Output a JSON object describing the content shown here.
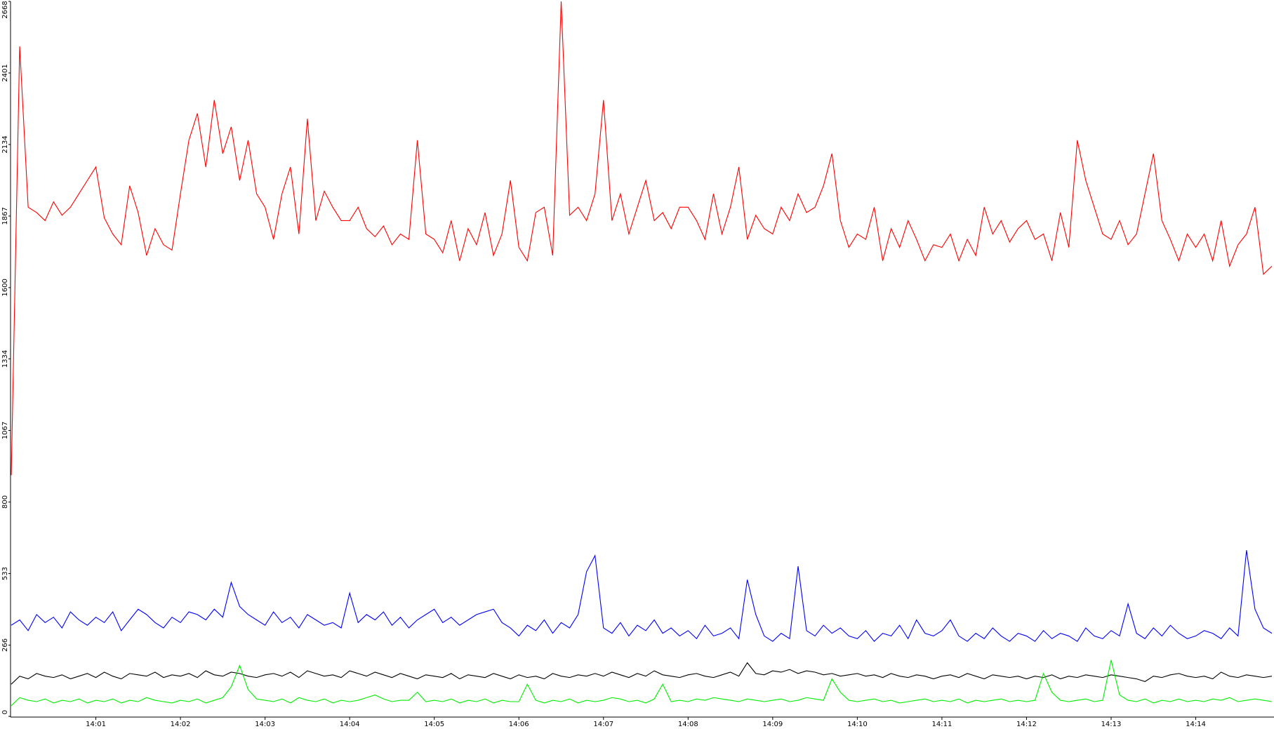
{
  "chart_data": {
    "type": "line",
    "ylim": [
      0,
      2668
    ],
    "yticks": [
      0,
      266,
      533,
      800,
      1067,
      1334,
      1600,
      1867,
      2134,
      2401,
      2668
    ],
    "categories": [
      null,
      null,
      null,
      null,
      null,
      null,
      null,
      null,
      null,
      null,
      "14:01",
      null,
      null,
      null,
      null,
      null,
      null,
      null,
      null,
      null,
      "14:02",
      null,
      null,
      null,
      null,
      null,
      null,
      null,
      null,
      null,
      "14:03",
      null,
      null,
      null,
      null,
      null,
      null,
      null,
      null,
      null,
      "14:04",
      null,
      null,
      null,
      null,
      null,
      null,
      null,
      null,
      null,
      "14:05",
      null,
      null,
      null,
      null,
      null,
      null,
      null,
      null,
      null,
      "14:06",
      null,
      null,
      null,
      null,
      null,
      null,
      null,
      null,
      null,
      "14:07",
      null,
      null,
      null,
      null,
      null,
      null,
      null,
      null,
      null,
      "14:08",
      null,
      null,
      null,
      null,
      null,
      null,
      null,
      null,
      null,
      "14:09",
      null,
      null,
      null,
      null,
      null,
      null,
      null,
      null,
      null,
      "14:10",
      null,
      null,
      null,
      null,
      null,
      null,
      null,
      null,
      null,
      "14:11",
      null,
      null,
      null,
      null,
      null,
      null,
      null,
      null,
      null,
      "14:12",
      null,
      null,
      null,
      null,
      null,
      null,
      null,
      null,
      null,
      "14:13",
      null,
      null,
      null,
      null,
      null,
      null,
      null,
      null,
      null,
      "14:14",
      null,
      null,
      null,
      null,
      null,
      null,
      null,
      null,
      null
    ],
    "series": [
      {
        "color": "#ff0000",
        "values": [
          900,
          2500,
          1900,
          1880,
          1850,
          1920,
          1870,
          1900,
          1950,
          2000,
          2050,
          1860,
          1800,
          1760,
          1980,
          1880,
          1720,
          1820,
          1760,
          1740,
          1950,
          2150,
          2250,
          2050,
          2300,
          2100,
          2200,
          2000,
          2150,
          1950,
          1900,
          1780,
          1950,
          2050,
          1800,
          2230,
          1850,
          1960,
          1900,
          1850,
          1850,
          1900,
          1820,
          1790,
          1830,
          1760,
          1800,
          1780,
          2150,
          1800,
          1780,
          1730,
          1850,
          1700,
          1820,
          1760,
          1880,
          1720,
          1800,
          2000,
          1750,
          1700,
          1880,
          1900,
          1720,
          2668,
          1870,
          1900,
          1850,
          1950,
          2300,
          1850,
          1950,
          1800,
          1900,
          2000,
          1850,
          1880,
          1820,
          1900,
          1900,
          1850,
          1780,
          1950,
          1800,
          1900,
          2050,
          1780,
          1870,
          1820,
          1800,
          1900,
          1850,
          1950,
          1880,
          1900,
          1980,
          2100,
          1850,
          1750,
          1800,
          1780,
          1900,
          1700,
          1820,
          1750,
          1850,
          1780,
          1700,
          1760,
          1750,
          1800,
          1700,
          1780,
          1720,
          1900,
          1800,
          1850,
          1770,
          1820,
          1850,
          1780,
          1800,
          1700,
          1880,
          1750,
          2150,
          2000,
          1900,
          1800,
          1780,
          1850,
          1760,
          1800,
          1950,
          2100,
          1850,
          1780,
          1700,
          1800,
          1750,
          1800,
          1700,
          1850,
          1680,
          1760,
          1800,
          1900,
          1650,
          1680
        ]
      },
      {
        "color": "#0000ff",
        "values": [
          340,
          360,
          320,
          380,
          350,
          370,
          330,
          390,
          360,
          340,
          370,
          350,
          390,
          320,
          360,
          400,
          380,
          350,
          330,
          370,
          350,
          390,
          380,
          360,
          400,
          370,
          500,
          410,
          380,
          360,
          340,
          390,
          350,
          370,
          330,
          380,
          360,
          340,
          350,
          330,
          460,
          350,
          380,
          360,
          390,
          340,
          370,
          330,
          360,
          380,
          400,
          350,
          370,
          340,
          360,
          380,
          390,
          400,
          350,
          330,
          300,
          340,
          320,
          360,
          310,
          350,
          330,
          380,
          540,
          600,
          330,
          310,
          350,
          300,
          340,
          320,
          360,
          310,
          330,
          300,
          320,
          290,
          340,
          300,
          310,
          330,
          290,
          510,
          380,
          300,
          280,
          310,
          290,
          560,
          320,
          300,
          340,
          310,
          330,
          300,
          290,
          320,
          280,
          310,
          300,
          340,
          290,
          360,
          310,
          300,
          320,
          360,
          300,
          280,
          310,
          290,
          330,
          300,
          280,
          310,
          300,
          280,
          320,
          290,
          310,
          300,
          280,
          330,
          300,
          290,
          320,
          300,
          420,
          310,
          290,
          330,
          300,
          340,
          310,
          290,
          300,
          320,
          310,
          290,
          330,
          300,
          620,
          400,
          330,
          310
        ]
      },
      {
        "color": "#000000",
        "values": [
          120,
          150,
          140,
          160,
          150,
          145,
          155,
          140,
          150,
          160,
          145,
          165,
          150,
          140,
          160,
          155,
          150,
          165,
          145,
          155,
          150,
          160,
          145,
          170,
          155,
          150,
          165,
          160,
          150,
          145,
          155,
          160,
          150,
          165,
          145,
          170,
          160,
          150,
          155,
          145,
          170,
          160,
          150,
          165,
          155,
          145,
          160,
          150,
          140,
          155,
          150,
          145,
          160,
          140,
          155,
          150,
          145,
          160,
          150,
          140,
          155,
          145,
          150,
          140,
          160,
          150,
          145,
          155,
          150,
          160,
          150,
          165,
          155,
          145,
          160,
          150,
          170,
          155,
          150,
          145,
          155,
          160,
          150,
          145,
          155,
          165,
          150,
          200,
          160,
          155,
          170,
          165,
          175,
          160,
          170,
          165,
          155,
          160,
          150,
          155,
          160,
          150,
          155,
          145,
          160,
          150,
          145,
          155,
          150,
          140,
          150,
          155,
          145,
          160,
          150,
          140,
          155,
          150,
          145,
          150,
          140,
          150,
          145,
          155,
          140,
          150,
          145,
          155,
          150,
          145,
          155,
          150,
          145,
          140,
          130,
          150,
          145,
          155,
          160,
          150,
          145,
          150,
          140,
          165,
          150,
          145,
          155,
          150,
          145,
          150
        ]
      },
      {
        "color": "#00ee00",
        "values": [
          40,
          70,
          60,
          55,
          65,
          50,
          60,
          55,
          65,
          50,
          60,
          55,
          65,
          50,
          60,
          55,
          70,
          60,
          55,
          50,
          60,
          55,
          65,
          50,
          60,
          70,
          110,
          190,
          100,
          65,
          60,
          55,
          65,
          50,
          70,
          60,
          55,
          65,
          50,
          60,
          55,
          60,
          70,
          80,
          65,
          55,
          60,
          60,
          90,
          55,
          60,
          55,
          65,
          50,
          60,
          55,
          65,
          50,
          60,
          55,
          55,
          120,
          60,
          50,
          60,
          55,
          65,
          50,
          60,
          55,
          60,
          70,
          65,
          55,
          60,
          50,
          65,
          120,
          55,
          60,
          55,
          65,
          60,
          70,
          65,
          60,
          55,
          65,
          60,
          55,
          60,
          65,
          55,
          60,
          70,
          65,
          60,
          140,
          90,
          60,
          55,
          60,
          65,
          55,
          60,
          50,
          55,
          60,
          65,
          55,
          60,
          55,
          65,
          50,
          60,
          55,
          60,
          65,
          55,
          60,
          55,
          60,
          160,
          90,
          60,
          55,
          60,
          65,
          55,
          60,
          210,
          80,
          60,
          55,
          65,
          50,
          60,
          55,
          65,
          55,
          60,
          55,
          65,
          60,
          70,
          55,
          60,
          65,
          60,
          55
        ]
      }
    ]
  }
}
